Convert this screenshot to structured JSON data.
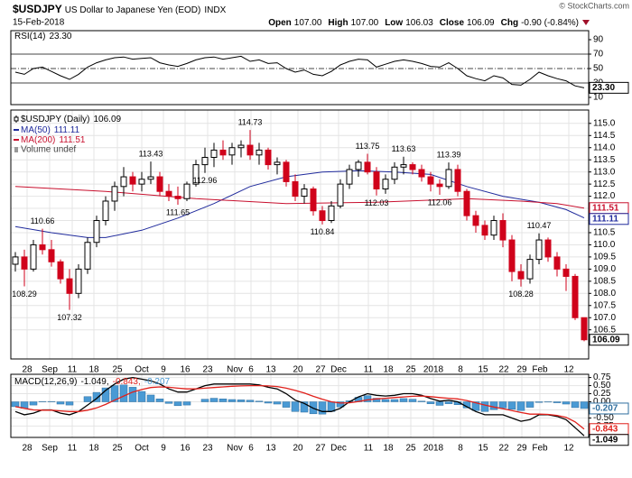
{
  "header": {
    "symbol": "$USDJPY",
    "name": "US Dollar to Japanese Yen (EOD)",
    "exchange": "INDX",
    "date": "15-Feb-2018",
    "credit": "© StockCharts.com",
    "quote": [
      [
        "Open",
        "107.00"
      ],
      [
        "High",
        "107.00"
      ],
      [
        "Low",
        "106.03"
      ],
      [
        "Close",
        "106.09"
      ],
      [
        "Chg",
        "-0.90 (-0.84%)"
      ]
    ]
  },
  "chart_data": [
    {
      "type": "line",
      "xlim": [
        -0.5,
        63.5
      ],
      "ylim": [
        0,
        102.5
      ],
      "yticks": [
        10,
        30,
        50,
        70,
        90
      ],
      "grid": false,
      "overbought": 70,
      "midline": 50,
      "oversold": 30,
      "series": [
        {
          "name": "RSI(14)",
          "color": "#000000",
          "last_label": "23.30",
          "values": [
            45,
            42,
            50,
            52,
            46,
            40,
            35,
            42,
            52,
            58,
            62,
            65,
            66,
            63,
            64,
            65,
            58,
            55,
            53,
            57,
            62,
            65,
            66,
            63,
            65,
            67,
            60,
            62,
            57,
            58,
            50,
            45,
            48,
            42,
            40,
            46,
            55,
            60,
            63,
            62,
            52,
            56,
            60,
            62,
            60,
            57,
            53,
            52,
            58,
            50,
            40,
            36,
            33,
            40,
            37,
            28,
            27,
            35,
            45,
            40,
            36,
            33,
            26,
            23.3
          ]
        }
      ]
    },
    {
      "type": "candlestick",
      "title": "$USDJPY (Daily)",
      "volume_legend": "Volume undef",
      "grid": true,
      "up_color": "#000000",
      "down_color": "#d0021b",
      "xlim": [
        -0.5,
        63.5
      ],
      "ylim": [
        105.3,
        115.55
      ],
      "yticks": [
        106.5,
        {
          "value": 107,
          "label": "107.0"
        },
        107.5,
        {
          "value": 108,
          "label": "108.0"
        },
        108.5,
        {
          "value": 109,
          "label": "109.0"
        },
        109.5,
        {
          "value": 110,
          "label": "110.0"
        },
        110.5,
        {
          "value": 111,
          "label": "111.0"
        },
        111.5,
        {
          "value": 112,
          "label": "112.0"
        },
        112.5,
        {
          "value": 113,
          "label": "113.0"
        },
        113.5,
        {
          "value": 114,
          "label": "114.0"
        },
        114.5,
        {
          "value": 115,
          "label": "115.0"
        }
      ],
      "xticks": [
        {
          "value": 1.3,
          "label": "28"
        },
        {
          "value": 3.8,
          "label": "Sep"
        },
        {
          "value": 6.3,
          "label": "11"
        },
        {
          "value": 8.7,
          "label": "18"
        },
        {
          "value": 11.3,
          "label": "25"
        },
        {
          "value": 14,
          "label": "Oct"
        },
        {
          "value": 16.4,
          "label": "9"
        },
        {
          "value": 18.8,
          "label": "16"
        },
        {
          "value": 21.3,
          "label": "23"
        },
        {
          "value": 24.3,
          "label": "Nov"
        },
        {
          "value": 26.1,
          "label": "6"
        },
        {
          "value": 28.3,
          "label": "13"
        },
        {
          "value": 31.3,
          "label": "20"
        },
        {
          "value": 33.8,
          "label": "27"
        },
        {
          "value": 35.8,
          "label": "Dec"
        },
        {
          "value": 39.1,
          "label": "11"
        },
        {
          "value": 41.3,
          "label": "18"
        },
        {
          "value": 43.8,
          "label": "25"
        },
        {
          "value": 46.3,
          "label": "2018"
        },
        {
          "value": 49.3,
          "label": "8"
        },
        {
          "value": 51.8,
          "label": "15"
        },
        {
          "value": 54.1,
          "label": "22"
        },
        {
          "value": 56.1,
          "label": "29"
        },
        {
          "value": 58.1,
          "label": "Feb"
        },
        {
          "value": 61.3,
          "label": "12"
        }
      ],
      "open": [
        109.2,
        109.5,
        109.0,
        110.0,
        109.8,
        109.3,
        108.6,
        108.0,
        109.0,
        110.1,
        111.0,
        111.8,
        112.4,
        112.8,
        112.5,
        112.7,
        112.8,
        112.2,
        112.0,
        111.9,
        112.5,
        113.3,
        113.6,
        113.9,
        113.7,
        114.0,
        114.1,
        113.7,
        113.9,
        113.3,
        113.4,
        112.6,
        112.0,
        112.3,
        111.4,
        111.0,
        111.6,
        112.5,
        113.1,
        113.4,
        113.0,
        112.3,
        112.7,
        113.2,
        113.3,
        113.1,
        112.8,
        112.5,
        112.4,
        113.1,
        112.2,
        111.2,
        110.8,
        110.4,
        111.0,
        110.2,
        108.9,
        108.6,
        109.4,
        110.2,
        109.5,
        109.0,
        108.7,
        107.0
      ],
      "high": [
        109.7,
        109.8,
        110.2,
        110.66,
        110.2,
        109.4,
        109.0,
        109.2,
        110.3,
        111.2,
        112.0,
        112.6,
        113.2,
        113.0,
        113.0,
        113.43,
        113.0,
        112.5,
        112.4,
        112.6,
        113.5,
        114.0,
        114.2,
        114.3,
        114.2,
        114.3,
        114.73,
        114.2,
        114.0,
        113.6,
        113.5,
        112.9,
        112.5,
        112.4,
        111.6,
        111.8,
        112.7,
        113.3,
        113.5,
        113.75,
        113.2,
        112.9,
        113.4,
        113.63,
        113.4,
        113.3,
        113.0,
        112.7,
        113.39,
        113.3,
        112.3,
        111.4,
        111.0,
        111.2,
        111.3,
        110.4,
        109.2,
        109.6,
        110.47,
        110.3,
        109.7,
        109.2,
        108.8,
        107.0
      ],
      "low": [
        108.9,
        108.29,
        108.9,
        109.6,
        109.1,
        108.4,
        107.32,
        107.8,
        108.8,
        109.9,
        110.8,
        111.4,
        112.0,
        112.2,
        112.2,
        112.5,
        112.0,
        111.8,
        111.65,
        111.8,
        112.4,
        112.96,
        113.2,
        113.5,
        113.3,
        113.6,
        113.5,
        113.3,
        113.1,
        112.9,
        112.4,
        111.8,
        111.7,
        111.2,
        110.84,
        110.9,
        111.5,
        112.3,
        112.8,
        112.9,
        112.03,
        112.1,
        112.5,
        112.9,
        112.9,
        112.6,
        112.2,
        112.06,
        112.3,
        112.0,
        111.0,
        110.5,
        110.2,
        110.2,
        109.9,
        108.5,
        108.28,
        108.4,
        109.2,
        109.3,
        108.7,
        108.1,
        106.9,
        106.03
      ],
      "close": [
        109.5,
        109.0,
        110.0,
        109.8,
        109.3,
        108.6,
        108.0,
        109.0,
        110.1,
        111.0,
        111.8,
        112.4,
        112.8,
        112.5,
        112.7,
        112.8,
        112.2,
        112.0,
        111.9,
        112.5,
        113.3,
        113.6,
        113.9,
        113.7,
        114.0,
        114.1,
        113.7,
        113.9,
        113.3,
        113.4,
        112.6,
        112.0,
        112.3,
        111.4,
        111.0,
        111.6,
        112.5,
        113.1,
        113.4,
        113.0,
        112.3,
        112.7,
        113.2,
        113.3,
        113.1,
        112.8,
        112.5,
        112.4,
        113.1,
        112.2,
        111.2,
        110.8,
        110.4,
        111.0,
        110.2,
        108.9,
        108.6,
        109.4,
        110.2,
        109.5,
        109.0,
        108.7,
        107.0,
        106.09
      ],
      "marked_highs": [
        3,
        15,
        26,
        39,
        43,
        48,
        58
      ],
      "marked_lows": [
        1,
        6,
        18,
        21,
        34,
        40,
        47,
        56
      ],
      "series": [
        {
          "name": "MA(50)",
          "color": "#1f2a9c",
          "x": [
            0,
            4,
            8,
            10,
            14,
            18,
            22,
            26,
            30,
            34,
            38,
            42,
            46,
            50,
            54,
            58,
            61,
            63
          ],
          "values": [
            110.75,
            110.5,
            110.3,
            110.3,
            110.6,
            111.1,
            111.7,
            112.4,
            112.8,
            113.0,
            113.05,
            113.0,
            112.9,
            112.4,
            112.0,
            111.75,
            111.45,
            111.11
          ]
        },
        {
          "name": "MA(200)",
          "color": "#c8102e",
          "x": [
            0,
            10,
            20,
            30,
            40,
            50,
            56,
            60,
            63
          ],
          "values": [
            112.4,
            112.2,
            111.9,
            111.7,
            111.75,
            111.9,
            111.8,
            111.7,
            111.51
          ]
        }
      ]
    },
    {
      "type": "macd",
      "separator": ",",
      "grid": true,
      "xlim": [
        -0.5,
        63.5
      ],
      "ylim": [
        -1.1,
        0.85
      ],
      "yticks": [
        0.75,
        {
          "value": 0.5,
          "label": "0.50"
        },
        0.25,
        {
          "value": 0,
          "label": "0.00"
        },
        -0.25,
        {
          "value": -0.5,
          "label": "-0.50"
        },
        -0.75
      ],
      "xticks": [
        {
          "value": 1.3,
          "label": "28"
        },
        {
          "value": 3.8,
          "label": "Sep"
        },
        {
          "value": 6.3,
          "label": "11"
        },
        {
          "value": 8.7,
          "label": "18"
        },
        {
          "value": 11.3,
          "label": "25"
        },
        {
          "value": 14,
          "label": "Oct"
        },
        {
          "value": 16.4,
          "label": "9"
        },
        {
          "value": 18.8,
          "label": "16"
        },
        {
          "value": 21.3,
          "label": "23"
        },
        {
          "value": 24.3,
          "label": "Nov"
        },
        {
          "value": 26.1,
          "label": "6"
        },
        {
          "value": 28.3,
          "label": "13"
        },
        {
          "value": 31.3,
          "label": "20"
        },
        {
          "value": 33.8,
          "label": "27"
        },
        {
          "value": 35.8,
          "label": "Dec"
        },
        {
          "value": 39.1,
          "label": "11"
        },
        {
          "value": 41.3,
          "label": "18"
        },
        {
          "value": 43.8,
          "label": "25"
        },
        {
          "value": 46.3,
          "label": "2018"
        },
        {
          "value": 49.3,
          "label": "8"
        },
        {
          "value": 51.8,
          "label": "15"
        },
        {
          "value": 54.1,
          "label": "22"
        },
        {
          "value": 56.1,
          "label": "29"
        },
        {
          "value": 58.1,
          "label": "Feb"
        },
        {
          "value": 61.3,
          "label": "12"
        }
      ],
      "series": [
        {
          "name": "MACD(12,26,9)",
          "color": "#000000",
          "values": [
            -0.3,
            -0.4,
            -0.35,
            -0.25,
            -0.25,
            -0.35,
            -0.4,
            -0.3,
            -0.1,
            0.1,
            0.35,
            0.55,
            0.7,
            0.75,
            0.7,
            0.65,
            0.55,
            0.4,
            0.3,
            0.3,
            0.4,
            0.5,
            0.55,
            0.55,
            0.55,
            0.55,
            0.55,
            0.52,
            0.45,
            0.4,
            0.25,
            0.05,
            -0.05,
            -0.2,
            -0.3,
            -0.3,
            -0.2,
            0.0,
            0.15,
            0.25,
            0.2,
            0.18,
            0.2,
            0.25,
            0.25,
            0.2,
            0.1,
            0.02,
            0.05,
            0.0,
            -0.15,
            -0.3,
            -0.4,
            -0.4,
            -0.4,
            -0.5,
            -0.6,
            -0.55,
            -0.4,
            -0.4,
            -0.45,
            -0.55,
            -0.8,
            -1.049
          ]
        },
        {
          "color": "#e0201b",
          "values": [
            -0.15,
            -0.2,
            -0.25,
            -0.26,
            -0.26,
            -0.28,
            -0.3,
            -0.3,
            -0.26,
            -0.19,
            -0.08,
            0.05,
            0.18,
            0.3,
            0.38,
            0.44,
            0.46,
            0.45,
            0.42,
            0.4,
            0.4,
            0.42,
            0.44,
            0.46,
            0.48,
            0.49,
            0.5,
            0.5,
            0.49,
            0.47,
            0.42,
            0.35,
            0.27,
            0.17,
            0.08,
            0.0,
            -0.04,
            -0.03,
            0.01,
            0.06,
            0.09,
            0.11,
            0.13,
            0.15,
            0.17,
            0.18,
            0.16,
            0.13,
            0.11,
            0.09,
            0.04,
            -0.03,
            -0.1,
            -0.16,
            -0.21,
            -0.27,
            -0.33,
            -0.38,
            -0.38,
            -0.39,
            -0.42,
            -0.48,
            -0.62,
            -0.843
          ]
        },
        {
          "color": "#4a9ad4",
          "kind": "bar",
          "values": [
            -0.15,
            -0.2,
            -0.1,
            0.01,
            0.01,
            -0.07,
            -0.1,
            0.0,
            0.16,
            0.29,
            0.43,
            0.5,
            0.52,
            0.45,
            0.32,
            0.21,
            0.09,
            -0.05,
            -0.12,
            -0.1,
            0.0,
            0.08,
            0.11,
            0.09,
            0.07,
            0.06,
            0.05,
            0.02,
            -0.04,
            -0.07,
            -0.17,
            -0.3,
            -0.32,
            -0.37,
            -0.38,
            -0.3,
            -0.16,
            0.03,
            0.14,
            0.19,
            0.11,
            0.07,
            0.07,
            0.1,
            0.08,
            0.02,
            -0.06,
            -0.11,
            -0.06,
            -0.09,
            -0.19,
            -0.27,
            -0.3,
            -0.24,
            -0.19,
            -0.23,
            -0.27,
            -0.17,
            -0.02,
            -0.01,
            -0.03,
            -0.07,
            -0.18,
            -0.207
          ]
        }
      ]
    }
  ]
}
